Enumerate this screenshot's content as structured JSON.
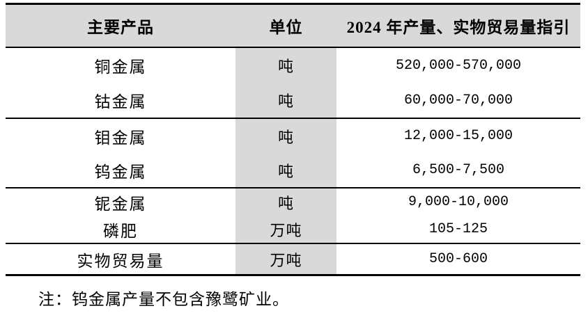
{
  "colors": {
    "header_bg": "#d9d9d9",
    "unit_column_bg": "#d9d9d9",
    "border": "#000000",
    "text": "#000000",
    "page_bg": "#ffffff"
  },
  "table": {
    "headers": [
      "主要产品",
      "单位",
      "2024 年产量、实物贸易量指引"
    ],
    "groups": [
      {
        "rows": [
          {
            "product": "铜金属",
            "unit": "吨",
            "value": "520,000-570,000"
          },
          {
            "product": "钴金属",
            "unit": "吨",
            "value": "60,000-70,000"
          }
        ]
      },
      {
        "rows": [
          {
            "product": "钼金属",
            "unit": "吨",
            "value": "12,000-15,000"
          },
          {
            "product": "钨金属",
            "unit": "吨",
            "value": "6,500-7,500"
          }
        ]
      },
      {
        "rows": [
          {
            "product": "铌金属",
            "unit": "吨",
            "value": "9,000-10,000"
          },
          {
            "product": "磷肥",
            "unit": "万吨",
            "value": "105-125"
          }
        ]
      },
      {
        "rows": [
          {
            "product": "实物贸易量",
            "unit": "万吨",
            "value": "500-600"
          }
        ]
      }
    ]
  },
  "note": "注：钨金属产量不包含豫鹭矿业。"
}
